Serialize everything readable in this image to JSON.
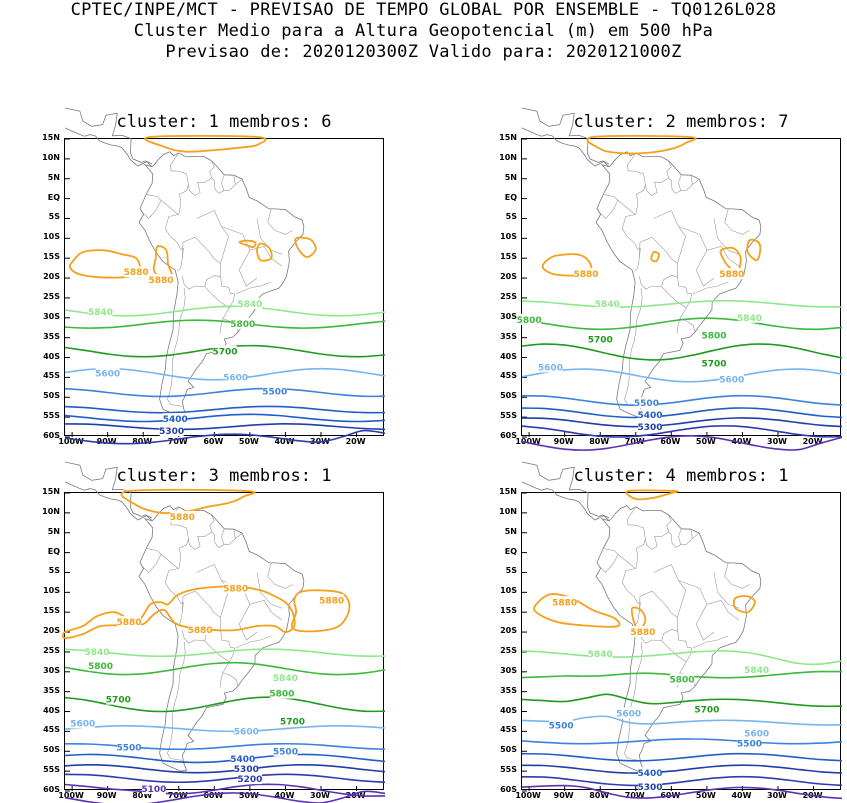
{
  "header": {
    "line1": "CPTEC/INPE/MCT - PREVISAO DE TEMPO GLOBAL POR ENSEMBLE - TQ0126L028",
    "line2": "Cluster Medio para a Altura Geopotencial (m) em 500 hPa",
    "line3": "Previsao de: 2020120300Z   Valido para: 2020121000Z"
  },
  "axes": {
    "lat_labels": [
      "15N",
      "10N",
      "5N",
      "EQ",
      "5S",
      "10S",
      "15S",
      "20S",
      "25S",
      "30S",
      "35S",
      "40S",
      "45S",
      "50S",
      "55S",
      "60S"
    ],
    "lon_labels": [
      "100W",
      "90W",
      "80W",
      "70W",
      "60W",
      "50W",
      "40W",
      "30W",
      "20W"
    ]
  },
  "colors": {
    "5880": "#f5a019",
    "5840": "#8ee88a",
    "5800": "#3cb83c",
    "5700": "#1f9a1f",
    "5600": "#78b4f0",
    "5500": "#3c82dc",
    "5400": "#1f5ec8",
    "5300": "#1f3ea8",
    "5200": "#2e3ab0",
    "5100": "#5a32b4"
  },
  "panels": [
    {
      "title": "cluster: 1   membros: 6",
      "labels": [
        {
          "text": "5880",
          "lon": -82,
          "lat": -18.5,
          "c": "5880"
        },
        {
          "text": "5880",
          "lon": -75,
          "lat": -20.5,
          "c": "5880"
        },
        {
          "text": "5840",
          "lon": -92,
          "lat": -28.5,
          "c": "5840"
        },
        {
          "text": "5840",
          "lon": -50,
          "lat": -26.5,
          "c": "5840"
        },
        {
          "text": "5800",
          "lon": -52,
          "lat": -31.5,
          "c": "5800"
        },
        {
          "text": "5700",
          "lon": -57,
          "lat": -38.5,
          "c": "5700"
        },
        {
          "text": "5600",
          "lon": -90,
          "lat": -44,
          "c": "5600"
        },
        {
          "text": "5600",
          "lon": -54,
          "lat": -45,
          "c": "5600"
        },
        {
          "text": "5500",
          "lon": -43,
          "lat": -48.5,
          "c": "5500"
        },
        {
          "text": "5400",
          "lon": -71,
          "lat": -55.5,
          "c": "5400"
        },
        {
          "text": "5300",
          "lon": -72,
          "lat": -58.5,
          "c": "5300"
        }
      ]
    },
    {
      "title": "cluster: 2   membros: 7",
      "labels": [
        {
          "text": "5880",
          "lon": -84,
          "lat": -19,
          "c": "5880"
        },
        {
          "text": "5880",
          "lon": -43,
          "lat": -19,
          "c": "5880"
        },
        {
          "text": "5840",
          "lon": -78,
          "lat": -26.5,
          "c": "5840"
        },
        {
          "text": "5840",
          "lon": -38,
          "lat": -30,
          "c": "5840"
        },
        {
          "text": "5800",
          "lon": -100,
          "lat": -30.5,
          "c": "5800"
        },
        {
          "text": "5800",
          "lon": -48,
          "lat": -34.5,
          "c": "5800"
        },
        {
          "text": "5700",
          "lon": -80,
          "lat": -35.5,
          "c": "5700"
        },
        {
          "text": "5700",
          "lon": -48,
          "lat": -41.5,
          "c": "5700"
        },
        {
          "text": "5600",
          "lon": -94,
          "lat": -42.5,
          "c": "5600"
        },
        {
          "text": "5600",
          "lon": -43,
          "lat": -45.5,
          "c": "5600"
        },
        {
          "text": "5500",
          "lon": -67,
          "lat": -51.5,
          "c": "5500"
        },
        {
          "text": "5400",
          "lon": -66,
          "lat": -54.5,
          "c": "5400"
        },
        {
          "text": "5300",
          "lon": -66,
          "lat": -57.5,
          "c": "5300"
        }
      ]
    },
    {
      "title": "cluster: 3   membros: 1",
      "labels": [
        {
          "text": "5880",
          "lon": -69,
          "lat": 9,
          "c": "5880"
        },
        {
          "text": "5880",
          "lon": -54,
          "lat": -9,
          "c": "5880"
        },
        {
          "text": "5880",
          "lon": -27,
          "lat": -12,
          "c": "5880"
        },
        {
          "text": "5880",
          "lon": -84,
          "lat": -17.5,
          "c": "5880"
        },
        {
          "text": "5880",
          "lon": -64,
          "lat": -19.5,
          "c": "5880"
        },
        {
          "text": "5840",
          "lon": -93,
          "lat": -25,
          "c": "5840"
        },
        {
          "text": "5840",
          "lon": -40,
          "lat": -31.5,
          "c": "5840"
        },
        {
          "text": "5800",
          "lon": -92,
          "lat": -28.5,
          "c": "5800"
        },
        {
          "text": "5800",
          "lon": -41,
          "lat": -35.5,
          "c": "5800"
        },
        {
          "text": "5700",
          "lon": -87,
          "lat": -37,
          "c": "5700"
        },
        {
          "text": "5700",
          "lon": -38,
          "lat": -42.5,
          "c": "5700"
        },
        {
          "text": "5600",
          "lon": -97,
          "lat": -43,
          "c": "5600"
        },
        {
          "text": "5600",
          "lon": -51,
          "lat": -45,
          "c": "5600"
        },
        {
          "text": "5500",
          "lon": -84,
          "lat": -49,
          "c": "5500"
        },
        {
          "text": "5500",
          "lon": -40,
          "lat": -50,
          "c": "5500"
        },
        {
          "text": "5400",
          "lon": -52,
          "lat": -52,
          "c": "5400"
        },
        {
          "text": "5300",
          "lon": -51,
          "lat": -54.5,
          "c": "5300"
        },
        {
          "text": "5200",
          "lon": -50,
          "lat": -57,
          "c": "5200"
        },
        {
          "text": "5100",
          "lon": -77,
          "lat": -59.5,
          "c": "5100"
        }
      ]
    },
    {
      "title": "cluster: 4   membros: 1",
      "labels": [
        {
          "text": "5880",
          "lon": -90,
          "lat": -12.5,
          "c": "5880"
        },
        {
          "text": "5880",
          "lon": -68,
          "lat": -20,
          "c": "5880"
        },
        {
          "text": "5840",
          "lon": -80,
          "lat": -25.5,
          "c": "5840"
        },
        {
          "text": "5840",
          "lon": -36,
          "lat": -29.5,
          "c": "5840"
        },
        {
          "text": "5800",
          "lon": -57,
          "lat": -32,
          "c": "5800"
        },
        {
          "text": "5700",
          "lon": -50,
          "lat": -39.5,
          "c": "5700"
        },
        {
          "text": "5600",
          "lon": -72,
          "lat": -40.5,
          "c": "5600"
        },
        {
          "text": "5600",
          "lon": -36,
          "lat": -45.5,
          "c": "5600"
        },
        {
          "text": "5500",
          "lon": -91,
          "lat": -43.5,
          "c": "5500"
        },
        {
          "text": "5500",
          "lon": -38,
          "lat": -48,
          "c": "5500"
        },
        {
          "text": "5400",
          "lon": -66,
          "lat": -55.5,
          "c": "5400"
        },
        {
          "text": "5300",
          "lon": -66,
          "lat": -59,
          "c": "5300"
        }
      ]
    }
  ]
}
